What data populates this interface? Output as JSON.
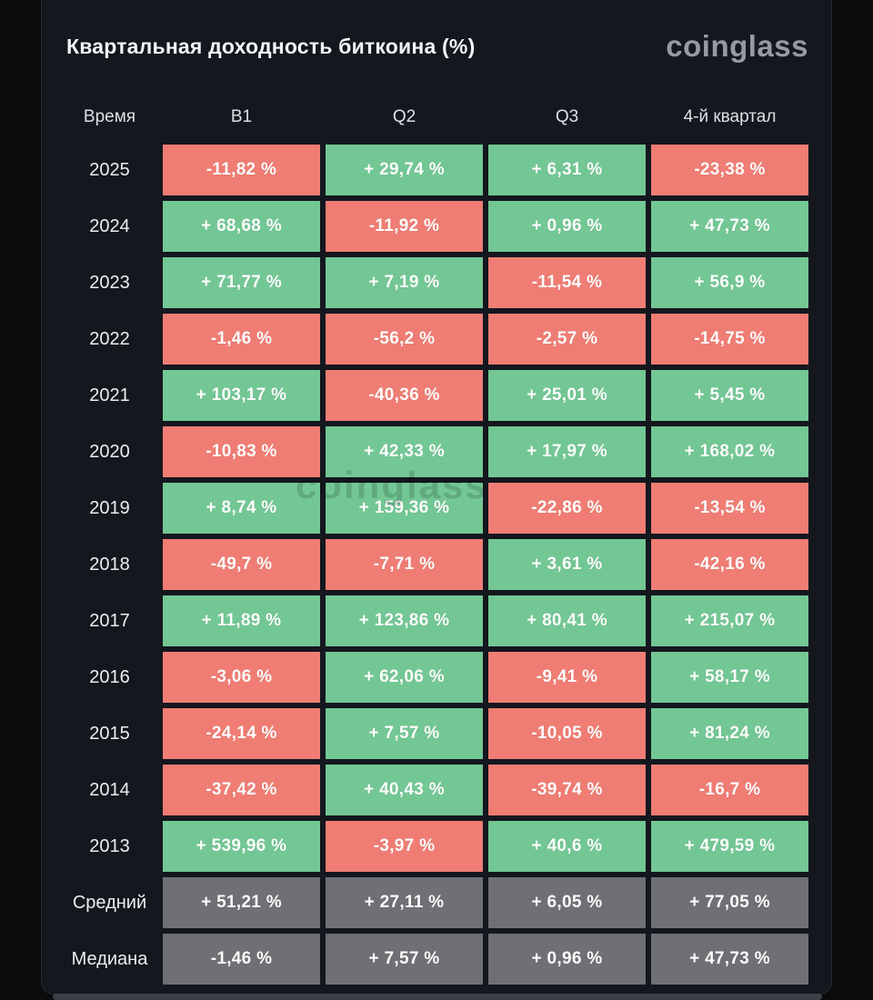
{
  "title": "Квартальная доходность биткоина (%)",
  "brand": "coinglass",
  "watermark": "coinglass",
  "colors": {
    "pos": "#73c794",
    "neg": "#ef7d74",
    "neutral": "#6f7074",
    "card_bg": "#14171e",
    "page_bg": "#0a0b0d",
    "cell_text": "#ffffff",
    "brand_text": "#959aa3"
  },
  "table": {
    "headers": [
      "Время",
      "В1",
      "Q2",
      "Q3",
      "4-й квартал"
    ],
    "rows": [
      {
        "label": "2025",
        "cells": [
          {
            "text": "-11,82 %",
            "tone": "neg"
          },
          {
            "text": "+ 29,74 %",
            "tone": "pos"
          },
          {
            "text": "+ 6,31 %",
            "tone": "pos"
          },
          {
            "text": "-23,38 %",
            "tone": "neg"
          }
        ]
      },
      {
        "label": "2024",
        "cells": [
          {
            "text": "+ 68,68 %",
            "tone": "pos"
          },
          {
            "text": "-11,92 %",
            "tone": "neg"
          },
          {
            "text": "+ 0,96 %",
            "tone": "pos"
          },
          {
            "text": "+ 47,73 %",
            "tone": "pos"
          }
        ]
      },
      {
        "label": "2023",
        "cells": [
          {
            "text": "+ 71,77 %",
            "tone": "pos"
          },
          {
            "text": "+ 7,19 %",
            "tone": "pos"
          },
          {
            "text": "-11,54 %",
            "tone": "neg"
          },
          {
            "text": "+ 56,9 %",
            "tone": "pos"
          }
        ]
      },
      {
        "label": "2022",
        "cells": [
          {
            "text": "-1,46 %",
            "tone": "neg"
          },
          {
            "text": "-56,2 %",
            "tone": "neg"
          },
          {
            "text": "-2,57 %",
            "tone": "neg"
          },
          {
            "text": "-14,75 %",
            "tone": "neg"
          }
        ]
      },
      {
        "label": "2021",
        "cells": [
          {
            "text": "+ 103,17 %",
            "tone": "pos"
          },
          {
            "text": "-40,36 %",
            "tone": "neg"
          },
          {
            "text": "+ 25,01 %",
            "tone": "pos"
          },
          {
            "text": "+ 5,45 %",
            "tone": "pos"
          }
        ]
      },
      {
        "label": "2020",
        "cells": [
          {
            "text": "-10,83 %",
            "tone": "neg"
          },
          {
            "text": "+ 42,33 %",
            "tone": "pos"
          },
          {
            "text": "+ 17,97 %",
            "tone": "pos"
          },
          {
            "text": "+ 168,02 %",
            "tone": "pos"
          }
        ]
      },
      {
        "label": "2019",
        "cells": [
          {
            "text": "+ 8,74 %",
            "tone": "pos"
          },
          {
            "text": "+ 159,36 %",
            "tone": "pos"
          },
          {
            "text": "-22,86 %",
            "tone": "neg"
          },
          {
            "text": "-13,54 %",
            "tone": "neg"
          }
        ]
      },
      {
        "label": "2018",
        "cells": [
          {
            "text": "-49,7 %",
            "tone": "neg"
          },
          {
            "text": "-7,71 %",
            "tone": "neg"
          },
          {
            "text": "+ 3,61 %",
            "tone": "pos"
          },
          {
            "text": "-42,16 %",
            "tone": "neg"
          }
        ]
      },
      {
        "label": "2017",
        "cells": [
          {
            "text": "+ 11,89 %",
            "tone": "pos"
          },
          {
            "text": "+ 123,86 %",
            "tone": "pos"
          },
          {
            "text": "+ 80,41 %",
            "tone": "pos"
          },
          {
            "text": "+ 215,07 %",
            "tone": "pos"
          }
        ]
      },
      {
        "label": "2016",
        "cells": [
          {
            "text": "-3,06 %",
            "tone": "neg"
          },
          {
            "text": "+ 62,06 %",
            "tone": "pos"
          },
          {
            "text": "-9,41 %",
            "tone": "neg"
          },
          {
            "text": "+ 58,17 %",
            "tone": "pos"
          }
        ]
      },
      {
        "label": "2015",
        "cells": [
          {
            "text": "-24,14 %",
            "tone": "neg"
          },
          {
            "text": "+ 7,57 %",
            "tone": "pos"
          },
          {
            "text": "-10,05 %",
            "tone": "neg"
          },
          {
            "text": "+ 81,24 %",
            "tone": "pos"
          }
        ]
      },
      {
        "label": "2014",
        "cells": [
          {
            "text": "-37,42 %",
            "tone": "neg"
          },
          {
            "text": "+ 40,43 %",
            "tone": "pos"
          },
          {
            "text": "-39,74 %",
            "tone": "neg"
          },
          {
            "text": "-16,7 %",
            "tone": "neg"
          }
        ]
      },
      {
        "label": "2013",
        "cells": [
          {
            "text": "+ 539,96 %",
            "tone": "pos"
          },
          {
            "text": "-3,97 %",
            "tone": "neg"
          },
          {
            "text": "+ 40,6 %",
            "tone": "pos"
          },
          {
            "text": "+ 479,59 %",
            "tone": "pos"
          }
        ]
      },
      {
        "label": "Средний",
        "cells": [
          {
            "text": "+ 51,21 %",
            "tone": "neutral"
          },
          {
            "text": "+ 27,11 %",
            "tone": "neutral"
          },
          {
            "text": "+ 6,05 %",
            "tone": "neutral"
          },
          {
            "text": "+ 77,05 %",
            "tone": "neutral"
          }
        ]
      },
      {
        "label": "Медиана",
        "cells": [
          {
            "text": "-1,46 %",
            "tone": "neutral"
          },
          {
            "text": "+ 7,57 %",
            "tone": "neutral"
          },
          {
            "text": "+ 0,96 %",
            "tone": "neutral"
          },
          {
            "text": "+ 47,73 %",
            "tone": "neutral"
          }
        ]
      }
    ]
  },
  "chart_data": {
    "type": "heatmap",
    "title": "Квартальная доходность биткоина (%)",
    "unit": "%",
    "columns": [
      "В1",
      "Q2",
      "Q3",
      "4-й квартал"
    ],
    "rows": [
      "2025",
      "2024",
      "2023",
      "2022",
      "2021",
      "2020",
      "2019",
      "2018",
      "2017",
      "2016",
      "2015",
      "2014",
      "2013",
      "Средний",
      "Медиана"
    ],
    "values": [
      [
        -11.82,
        29.74,
        6.31,
        -23.38
      ],
      [
        68.68,
        -11.92,
        0.96,
        47.73
      ],
      [
        71.77,
        7.19,
        -11.54,
        56.9
      ],
      [
        -1.46,
        -56.2,
        -2.57,
        -14.75
      ],
      [
        103.17,
        -40.36,
        25.01,
        5.45
      ],
      [
        -10.83,
        42.33,
        17.97,
        168.02
      ],
      [
        8.74,
        159.36,
        -22.86,
        -13.54
      ],
      [
        -49.7,
        -7.71,
        3.61,
        -42.16
      ],
      [
        11.89,
        123.86,
        80.41,
        215.07
      ],
      [
        -3.06,
        62.06,
        -9.41,
        58.17
      ],
      [
        -24.14,
        7.57,
        -10.05,
        81.24
      ],
      [
        -37.42,
        40.43,
        -39.74,
        -16.7
      ],
      [
        539.96,
        -3.97,
        40.6,
        479.59
      ],
      [
        51.21,
        27.11,
        6.05,
        77.05
      ],
      [
        -1.46,
        7.57,
        0.96,
        47.73
      ]
    ],
    "color_coding": "green = positive return, red = negative return, gray = summary rows (average / median)",
    "legend_position": "none",
    "grid": "off"
  }
}
